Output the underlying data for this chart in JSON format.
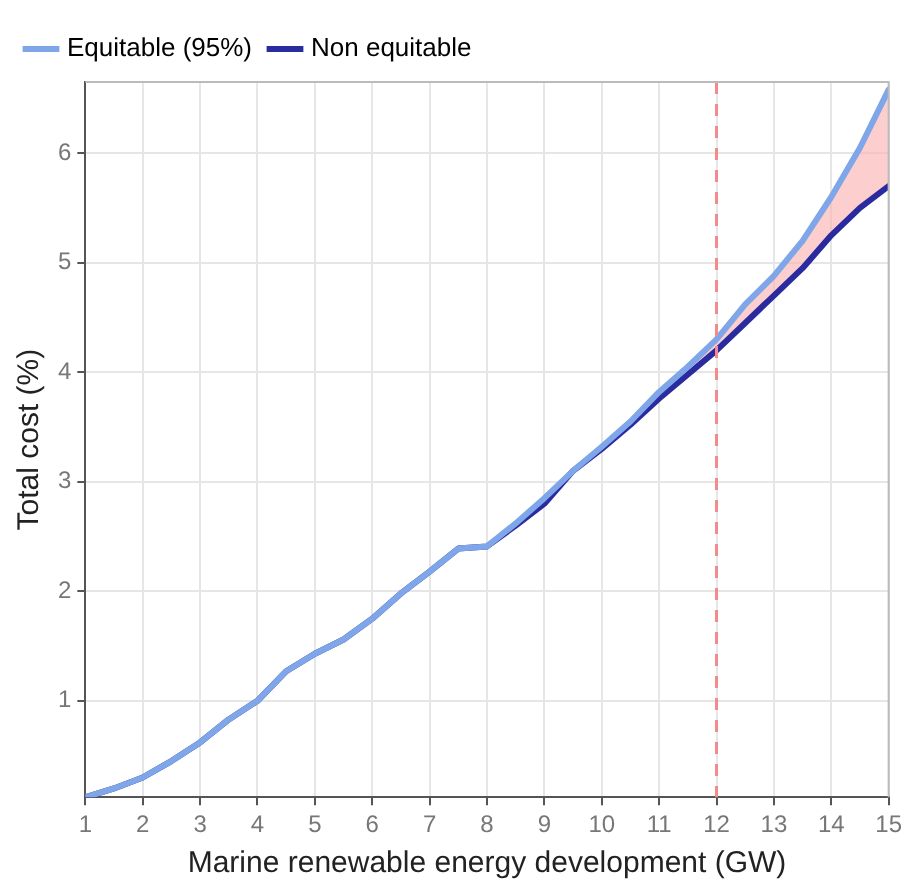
{
  "chart_data": {
    "type": "line",
    "xlabel": "Marine renewable energy development (GW)",
    "ylabel": "Total cost (%)",
    "x": [
      1,
      1.5,
      2,
      2.5,
      3,
      3.5,
      4,
      4.5,
      5,
      5.5,
      6,
      6.5,
      7,
      7.5,
      8,
      8.5,
      9,
      9.5,
      10,
      10.5,
      11,
      11.5,
      12,
      12.5,
      13,
      13.5,
      14,
      14.5,
      15
    ],
    "series": [
      {
        "name": "Equitable (95%)",
        "color": "#7ea6e8",
        "values": [
          0.12,
          0.2,
          0.3,
          0.45,
          0.62,
          0.83,
          1.0,
          1.27,
          1.43,
          1.56,
          1.75,
          1.98,
          2.18,
          2.39,
          2.41,
          2.62,
          2.85,
          3.1,
          3.32,
          3.55,
          3.82,
          4.05,
          4.3,
          4.62,
          4.88,
          5.2,
          5.6,
          6.05,
          6.58
        ],
        "lower": [
          null,
          null,
          null,
          null,
          null,
          null,
          null,
          null,
          null,
          null,
          null,
          null,
          null,
          null,
          null,
          null,
          null,
          null,
          null,
          null,
          3.76,
          3.98,
          4.2,
          4.45,
          4.7,
          4.95,
          5.25,
          5.5,
          5.7
        ],
        "upper": [
          null,
          null,
          null,
          null,
          null,
          null,
          null,
          null,
          null,
          null,
          null,
          null,
          null,
          null,
          null,
          null,
          null,
          null,
          null,
          null,
          3.82,
          4.05,
          4.3,
          4.62,
          4.88,
          5.2,
          5.6,
          6.05,
          6.58
        ]
      },
      {
        "name": "Non equitable",
        "color": "#2b2ba0",
        "values": [
          0.12,
          0.2,
          0.3,
          0.45,
          0.62,
          0.83,
          1.0,
          1.27,
          1.43,
          1.56,
          1.75,
          1.98,
          2.18,
          2.39,
          2.41,
          2.6,
          2.8,
          3.1,
          3.3,
          3.52,
          3.76,
          3.98,
          4.2,
          4.45,
          4.7,
          4.95,
          5.25,
          5.5,
          5.7
        ]
      }
    ],
    "xlim": [
      1,
      15
    ],
    "xticks": [
      1,
      2,
      3,
      4,
      5,
      6,
      7,
      8,
      9,
      10,
      11,
      12,
      13,
      14,
      15
    ],
    "ylim": [
      0.12,
      6.65
    ],
    "yticks": [
      1,
      2,
      3,
      4,
      5,
      6
    ],
    "ref_lines": [
      {
        "axis": "x",
        "value": 12,
        "color": "#f28b8b",
        "line_style": "dashed"
      }
    ],
    "grid": true,
    "legend": "top left",
    "marker": "none",
    "line_style": "solid"
  }
}
